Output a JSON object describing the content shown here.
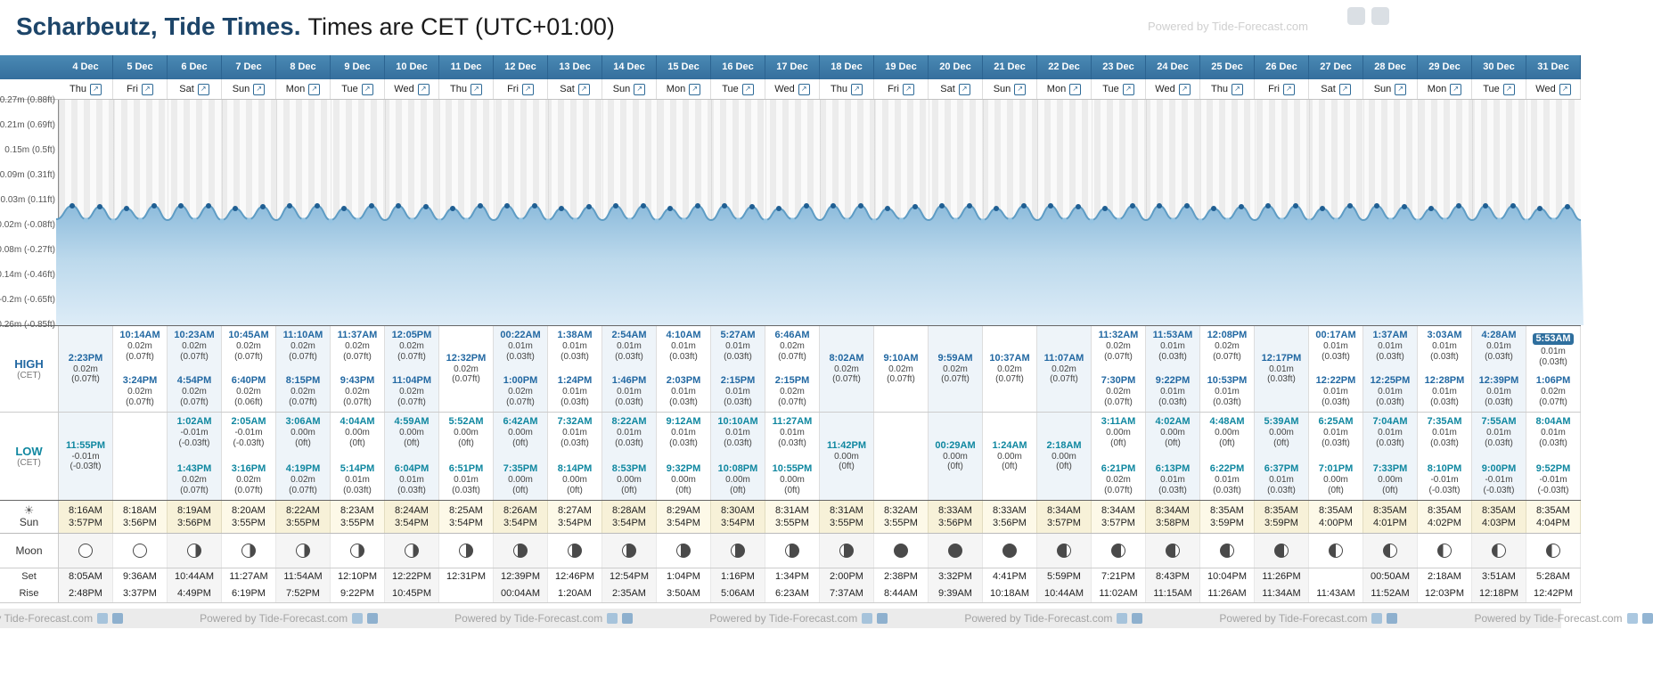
{
  "header": {
    "title_location": "Scharbeutz, Tide Times.",
    "title_rest": "Times are CET (UTC+01:00)",
    "watermark": "Powered by Tide-Forecast.com"
  },
  "row_labels": {
    "high": "HIGH",
    "low": "LOW",
    "cet": "(CET)",
    "sun": "Sun",
    "moon": "Moon",
    "set": "Set",
    "rise": "Rise"
  },
  "chart": {
    "y_axis_labels": [
      "0.27m (0.88ft)",
      "0.21m (0.69ft)",
      "0.15m (0.5ft)",
      "0.09m (0.31ft)",
      "0.03m (0.11ft)",
      "-0.02m (-0.08ft)",
      "-0.08m (-0.27ft)",
      "-0.14m (-0.46ft)",
      "-0.2m (-0.65ft)",
      "-0.26m (-0.85ft)"
    ]
  },
  "colors": {
    "header_blue": "#3c7ca9",
    "high_time": "#2268a2",
    "low_time": "#0f87a0",
    "highlight_bg": "#2f6f9e"
  },
  "days": [
    {
      "date": "4 Dec",
      "weekday": "Thu",
      "high": [
        {
          "time": "2:23PM",
          "m": "0.02m",
          "ft": "(0.07ft)"
        }
      ],
      "low": [
        {
          "time": "11:55PM",
          "m": "-0.01m",
          "ft": "(-0.03ft)"
        }
      ],
      "sunrise": "8:16AM",
      "sunset": "3:57PM",
      "moon": "full",
      "moonset": "8:05AM",
      "moonrise": "2:48PM"
    },
    {
      "date": "5 Dec",
      "weekday": "Fri",
      "high": [
        {
          "time": "10:14AM",
          "m": "0.02m",
          "ft": "(0.07ft)"
        },
        {
          "time": "3:24PM",
          "m": "0.02m",
          "ft": "(0.07ft)"
        }
      ],
      "low": [],
      "sunrise": "8:18AM",
      "sunset": "3:56PM",
      "moon": "full",
      "moonset": "9:36AM",
      "moonrise": "3:37PM"
    },
    {
      "date": "6 Dec",
      "weekday": "Sat",
      "high": [
        {
          "time": "10:23AM",
          "m": "0.02m",
          "ft": "(0.07ft)"
        },
        {
          "time": "4:54PM",
          "m": "0.02m",
          "ft": "(0.07ft)"
        }
      ],
      "low": [
        {
          "time": "1:02AM",
          "m": "-0.01m",
          "ft": "(-0.03ft)"
        },
        {
          "time": "1:43PM",
          "m": "0.02m",
          "ft": "(0.07ft)"
        }
      ],
      "sunrise": "8:19AM",
      "sunset": "3:56PM",
      "moon": "waning-gibbous",
      "moonset": "10:44AM",
      "moonrise": "4:49PM"
    },
    {
      "date": "7 Dec",
      "weekday": "Sun",
      "high": [
        {
          "time": "10:45AM",
          "m": "0.02m",
          "ft": "(0.07ft)"
        },
        {
          "time": "6:40PM",
          "m": "0.02m",
          "ft": "(0.06ft)"
        }
      ],
      "low": [
        {
          "time": "2:05AM",
          "m": "-0.01m",
          "ft": "(-0.03ft)"
        },
        {
          "time": "3:16PM",
          "m": "0.02m",
          "ft": "(0.07ft)"
        }
      ],
      "sunrise": "8:20AM",
      "sunset": "3:55PM",
      "moon": "waning-gibbous",
      "moonset": "11:27AM",
      "moonrise": "6:19PM"
    },
    {
      "date": "8 Dec",
      "weekday": "Mon",
      "high": [
        {
          "time": "11:10AM",
          "m": "0.02m",
          "ft": "(0.07ft)"
        },
        {
          "time": "8:15PM",
          "m": "0.02m",
          "ft": "(0.07ft)"
        }
      ],
      "low": [
        {
          "time": "3:06AM",
          "m": "0.00m",
          "ft": "(0ft)"
        },
        {
          "time": "4:19PM",
          "m": "0.02m",
          "ft": "(0.07ft)"
        }
      ],
      "sunrise": "8:22AM",
      "sunset": "3:55PM",
      "moon": "waning-gibbous",
      "moonset": "11:54AM",
      "moonrise": "7:52PM"
    },
    {
      "date": "9 Dec",
      "weekday": "Tue",
      "high": [
        {
          "time": "11:37AM",
          "m": "0.02m",
          "ft": "(0.07ft)"
        },
        {
          "time": "9:43PM",
          "m": "0.02m",
          "ft": "(0.07ft)"
        }
      ],
      "low": [
        {
          "time": "4:04AM",
          "m": "0.00m",
          "ft": "(0ft)"
        },
        {
          "time": "5:14PM",
          "m": "0.01m",
          "ft": "(0.03ft)"
        }
      ],
      "sunrise": "8:23AM",
      "sunset": "3:55PM",
      "moon": "waning-gibbous",
      "moonset": "12:10PM",
      "moonrise": "9:22PM"
    },
    {
      "date": "10 Dec",
      "weekday": "Wed",
      "high": [
        {
          "time": "12:05PM",
          "m": "0.02m",
          "ft": "(0.07ft)"
        },
        {
          "time": "11:04PM",
          "m": "0.02m",
          "ft": "(0.07ft)"
        }
      ],
      "low": [
        {
          "time": "4:59AM",
          "m": "0.00m",
          "ft": "(0ft)"
        },
        {
          "time": "6:04PM",
          "m": "0.01m",
          "ft": "(0.03ft)"
        }
      ],
      "sunrise": "8:24AM",
      "sunset": "3:54PM",
      "moon": "waning-gibbous",
      "moonset": "12:22PM",
      "moonrise": "10:45PM"
    },
    {
      "date": "11 Dec",
      "weekday": "Thu",
      "high": [
        {
          "time": "12:32PM",
          "m": "0.02m",
          "ft": "(0.07ft)"
        }
      ],
      "low": [
        {
          "time": "5:52AM",
          "m": "0.00m",
          "ft": "(0ft)"
        },
        {
          "time": "6:51PM",
          "m": "0.01m",
          "ft": "(0.03ft)"
        }
      ],
      "sunrise": "8:25AM",
      "sunset": "3:54PM",
      "moon": "last-quarter",
      "moonset": "12:31PM",
      "moonrise": ""
    },
    {
      "date": "12 Dec",
      "weekday": "Fri",
      "high": [
        {
          "time": "00:22AM",
          "m": "0.01m",
          "ft": "(0.03ft)"
        },
        {
          "time": "1:00PM",
          "m": "0.02m",
          "ft": "(0.07ft)"
        }
      ],
      "low": [
        {
          "time": "6:42AM",
          "m": "0.00m",
          "ft": "(0ft)"
        },
        {
          "time": "7:35PM",
          "m": "0.00m",
          "ft": "(0ft)"
        }
      ],
      "sunrise": "8:26AM",
      "sunset": "3:54PM",
      "moon": "waning-crescent",
      "moonset": "12:39PM",
      "moonrise": "00:04AM"
    },
    {
      "date": "13 Dec",
      "weekday": "Sat",
      "high": [
        {
          "time": "1:38AM",
          "m": "0.01m",
          "ft": "(0.03ft)"
        },
        {
          "time": "1:24PM",
          "m": "0.01m",
          "ft": "(0.03ft)"
        }
      ],
      "low": [
        {
          "time": "7:32AM",
          "m": "0.01m",
          "ft": "(0.03ft)"
        },
        {
          "time": "8:14PM",
          "m": "0.00m",
          "ft": "(0ft)"
        }
      ],
      "sunrise": "8:27AM",
      "sunset": "3:54PM",
      "moon": "waning-crescent",
      "moonset": "12:46PM",
      "moonrise": "1:20AM"
    },
    {
      "date": "14 Dec",
      "weekday": "Sun",
      "high": [
        {
          "time": "2:54AM",
          "m": "0.01m",
          "ft": "(0.03ft)"
        },
        {
          "time": "1:46PM",
          "m": "0.01m",
          "ft": "(0.03ft)"
        }
      ],
      "low": [
        {
          "time": "8:22AM",
          "m": "0.01m",
          "ft": "(0.03ft)"
        },
        {
          "time": "8:53PM",
          "m": "0.00m",
          "ft": "(0ft)"
        }
      ],
      "sunrise": "8:28AM",
      "sunset": "3:54PM",
      "moon": "waning-crescent",
      "moonset": "12:54PM",
      "moonrise": "2:35AM"
    },
    {
      "date": "15 Dec",
      "weekday": "Mon",
      "high": [
        {
          "time": "4:10AM",
          "m": "0.01m",
          "ft": "(0.03ft)"
        },
        {
          "time": "2:03PM",
          "m": "0.01m",
          "ft": "(0.03ft)"
        }
      ],
      "low": [
        {
          "time": "9:12AM",
          "m": "0.01m",
          "ft": "(0.03ft)"
        },
        {
          "time": "9:32PM",
          "m": "0.00m",
          "ft": "(0ft)"
        }
      ],
      "sunrise": "8:29AM",
      "sunset": "3:54PM",
      "moon": "waning-crescent",
      "moonset": "1:04PM",
      "moonrise": "3:50AM"
    },
    {
      "date": "16 Dec",
      "weekday": "Tue",
      "high": [
        {
          "time": "5:27AM",
          "m": "0.01m",
          "ft": "(0.03ft)"
        },
        {
          "time": "2:15PM",
          "m": "0.01m",
          "ft": "(0.03ft)"
        }
      ],
      "low": [
        {
          "time": "10:10AM",
          "m": "0.01m",
          "ft": "(0.03ft)"
        },
        {
          "time": "10:08PM",
          "m": "0.00m",
          "ft": "(0ft)"
        }
      ],
      "sunrise": "8:30AM",
      "sunset": "3:54PM",
      "moon": "waning-crescent",
      "moonset": "1:16PM",
      "moonrise": "5:06AM"
    },
    {
      "date": "17 Dec",
      "weekday": "Wed",
      "high": [
        {
          "time": "6:46AM",
          "m": "0.02m",
          "ft": "(0.07ft)"
        },
        {
          "time": "2:15PM",
          "m": "0.02m",
          "ft": "(0.07ft)"
        }
      ],
      "low": [
        {
          "time": "11:27AM",
          "m": "0.01m",
          "ft": "(0.03ft)"
        },
        {
          "time": "10:55PM",
          "m": "0.00m",
          "ft": "(0ft)"
        }
      ],
      "sunrise": "8:31AM",
      "sunset": "3:55PM",
      "moon": "waning-crescent",
      "moonset": "1:34PM",
      "moonrise": "6:23AM"
    },
    {
      "date": "18 Dec",
      "weekday": "Thu",
      "high": [
        {
          "time": "8:02AM",
          "m": "0.02m",
          "ft": "(0.07ft)"
        }
      ],
      "low": [
        {
          "time": "11:42PM",
          "m": "0.00m",
          "ft": "(0ft)"
        }
      ],
      "sunrise": "8:31AM",
      "sunset": "3:55PM",
      "moon": "waning-crescent",
      "moonset": "2:00PM",
      "moonrise": "7:37AM"
    },
    {
      "date": "19 Dec",
      "weekday": "Fri",
      "high": [
        {
          "time": "9:10AM",
          "m": "0.02m",
          "ft": "(0.07ft)"
        }
      ],
      "low": [],
      "sunrise": "8:32AM",
      "sunset": "3:55PM",
      "moon": "new",
      "moonset": "2:38PM",
      "moonrise": "8:44AM"
    },
    {
      "date": "20 Dec",
      "weekday": "Sat",
      "high": [
        {
          "time": "9:59AM",
          "m": "0.02m",
          "ft": "(0.07ft)"
        }
      ],
      "low": [
        {
          "time": "00:29AM",
          "m": "0.00m",
          "ft": "(0ft)"
        }
      ],
      "sunrise": "8:33AM",
      "sunset": "3:56PM",
      "moon": "new",
      "moonset": "3:32PM",
      "moonrise": "9:39AM"
    },
    {
      "date": "21 Dec",
      "weekday": "Sun",
      "high": [
        {
          "time": "10:37AM",
          "m": "0.02m",
          "ft": "(0.07ft)"
        }
      ],
      "low": [
        {
          "time": "1:24AM",
          "m": "0.00m",
          "ft": "(0ft)"
        }
      ],
      "sunrise": "8:33AM",
      "sunset": "3:56PM",
      "moon": "new",
      "moonset": "4:41PM",
      "moonrise": "10:18AM"
    },
    {
      "date": "22 Dec",
      "weekday": "Mon",
      "high": [
        {
          "time": "11:07AM",
          "m": "0.02m",
          "ft": "(0.07ft)"
        }
      ],
      "low": [
        {
          "time": "2:18AM",
          "m": "0.00m",
          "ft": "(0ft)"
        }
      ],
      "sunrise": "8:34AM",
      "sunset": "3:57PM",
      "moon": "waxing-crescent",
      "moonset": "5:59PM",
      "moonrise": "10:44AM"
    },
    {
      "date": "23 Dec",
      "weekday": "Tue",
      "high": [
        {
          "time": "11:32AM",
          "m": "0.02m",
          "ft": "(0.07ft)"
        },
        {
          "time": "7:30PM",
          "m": "0.02m",
          "ft": "(0.07ft)"
        }
      ],
      "low": [
        {
          "time": "3:11AM",
          "m": "0.00m",
          "ft": "(0ft)"
        },
        {
          "time": "6:21PM",
          "m": "0.02m",
          "ft": "(0.07ft)"
        }
      ],
      "sunrise": "8:34AM",
      "sunset": "3:57PM",
      "moon": "waxing-crescent",
      "moonset": "7:21PM",
      "moonrise": "11:02AM"
    },
    {
      "date": "24 Dec",
      "weekday": "Wed",
      "high": [
        {
          "time": "11:53AM",
          "m": "0.01m",
          "ft": "(0.03ft)"
        },
        {
          "time": "9:22PM",
          "m": "0.01m",
          "ft": "(0.03ft)"
        }
      ],
      "low": [
        {
          "time": "4:02AM",
          "m": "0.00m",
          "ft": "(0ft)"
        },
        {
          "time": "6:13PM",
          "m": "0.01m",
          "ft": "(0.03ft)"
        }
      ],
      "sunrise": "8:34AM",
      "sunset": "3:58PM",
      "moon": "waxing-crescent",
      "moonset": "8:43PM",
      "moonrise": "11:15AM"
    },
    {
      "date": "25 Dec",
      "weekday": "Thu",
      "high": [
        {
          "time": "12:08PM",
          "m": "0.02m",
          "ft": "(0.07ft)"
        },
        {
          "time": "10:53PM",
          "m": "0.01m",
          "ft": "(0.03ft)"
        }
      ],
      "low": [
        {
          "time": "4:48AM",
          "m": "0.00m",
          "ft": "(0ft)"
        },
        {
          "time": "6:22PM",
          "m": "0.01m",
          "ft": "(0.03ft)"
        }
      ],
      "sunrise": "8:35AM",
      "sunset": "3:59PM",
      "moon": "waxing-crescent",
      "moonset": "10:04PM",
      "moonrise": "11:26AM"
    },
    {
      "date": "26 Dec",
      "weekday": "Fri",
      "high": [
        {
          "time": "12:17PM",
          "m": "0.01m",
          "ft": "(0.03ft)"
        }
      ],
      "low": [
        {
          "time": "5:39AM",
          "m": "0.00m",
          "ft": "(0ft)"
        },
        {
          "time": "6:37PM",
          "m": "0.01m",
          "ft": "(0.03ft)"
        }
      ],
      "sunrise": "8:35AM",
      "sunset": "3:59PM",
      "moon": "waxing-crescent",
      "moonset": "11:26PM",
      "moonrise": "11:34AM"
    },
    {
      "date": "27 Dec",
      "weekday": "Sat",
      "high": [
        {
          "time": "00:17AM",
          "m": "0.01m",
          "ft": "(0.03ft)"
        },
        {
          "time": "12:22PM",
          "m": "0.01m",
          "ft": "(0.03ft)"
        }
      ],
      "low": [
        {
          "time": "6:25AM",
          "m": "0.01m",
          "ft": "(0.03ft)"
        },
        {
          "time": "7:01PM",
          "m": "0.00m",
          "ft": "(0ft)"
        }
      ],
      "sunrise": "8:35AM",
      "sunset": "4:00PM",
      "moon": "first-quarter",
      "moonset": "",
      "moonrise": "11:43AM"
    },
    {
      "date": "28 Dec",
      "weekday": "Sun",
      "high": [
        {
          "time": "1:37AM",
          "m": "0.01m",
          "ft": "(0.03ft)"
        },
        {
          "time": "12:25PM",
          "m": "0.01m",
          "ft": "(0.03ft)"
        }
      ],
      "low": [
        {
          "time": "7:04AM",
          "m": "0.01m",
          "ft": "(0.03ft)"
        },
        {
          "time": "7:33PM",
          "m": "0.00m",
          "ft": "(0ft)"
        }
      ],
      "sunrise": "8:35AM",
      "sunset": "4:01PM",
      "moon": "first-quarter",
      "moonset": "00:50AM",
      "moonrise": "11:52AM"
    },
    {
      "date": "29 Dec",
      "weekday": "Mon",
      "high": [
        {
          "time": "3:03AM",
          "m": "0.01m",
          "ft": "(0.03ft)"
        },
        {
          "time": "12:28PM",
          "m": "0.01m",
          "ft": "(0.03ft)"
        }
      ],
      "low": [
        {
          "time": "7:35AM",
          "m": "0.01m",
          "ft": "(0.03ft)"
        },
        {
          "time": "8:10PM",
          "m": "-0.01m",
          "ft": "(-0.03ft)"
        }
      ],
      "sunrise": "8:35AM",
      "sunset": "4:02PM",
      "moon": "waxing-gibbous",
      "moonset": "2:18AM",
      "moonrise": "12:03PM"
    },
    {
      "date": "30 Dec",
      "weekday": "Tue",
      "high": [
        {
          "time": "4:28AM",
          "m": "0.01m",
          "ft": "(0.03ft)"
        },
        {
          "time": "12:39PM",
          "m": "0.01m",
          "ft": "(0.03ft)"
        }
      ],
      "low": [
        {
          "time": "7:55AM",
          "m": "0.01m",
          "ft": "(0.03ft)"
        },
        {
          "time": "9:00PM",
          "m": "-0.01m",
          "ft": "(-0.03ft)"
        }
      ],
      "sunrise": "8:35AM",
      "sunset": "4:03PM",
      "moon": "waxing-gibbous",
      "moonset": "3:51AM",
      "moonrise": "12:18PM"
    },
    {
      "date": "31 Dec",
      "weekday": "Wed",
      "high": [
        {
          "time": "5:53AM",
          "m": "0.01m",
          "ft": "(0.03ft)",
          "highlight": true
        },
        {
          "time": "1:06PM",
          "m": "0.02m",
          "ft": "(0.07ft)"
        }
      ],
      "low": [
        {
          "time": "8:04AM",
          "m": "0.01m",
          "ft": "(0.03ft)"
        },
        {
          "time": "9:52PM",
          "m": "-0.01m",
          "ft": "(-0.03ft)"
        }
      ],
      "sunrise": "8:35AM",
      "sunset": "4:04PM",
      "moon": "waxing-gibbous",
      "moonset": "5:28AM",
      "moonrise": "12:42PM"
    }
  ],
  "footer": {
    "text": "Powered by Tide-Forecast.com"
  }
}
